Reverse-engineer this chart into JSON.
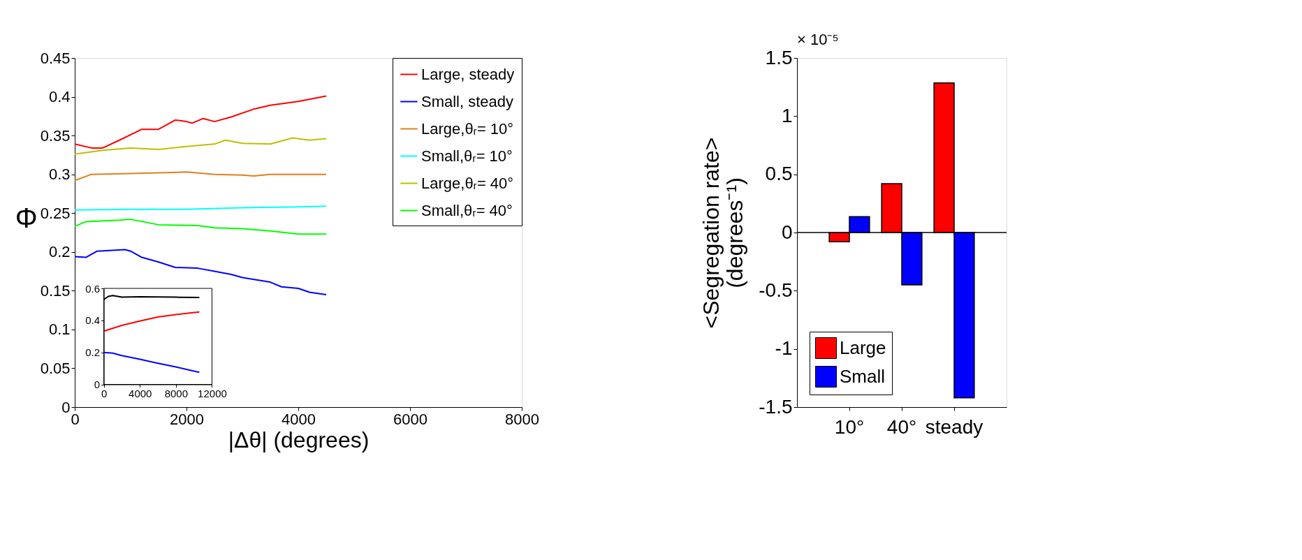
{
  "chart_data": [
    {
      "type": "line",
      "xlabel": "|Δθ| (degrees)",
      "ylabel": "Φ",
      "xlim": [
        0,
        8000
      ],
      "ylim": [
        0,
        0.45
      ],
      "xticks": [
        0,
        2000,
        4000,
        6000,
        8000
      ],
      "yticks": [
        0,
        0.05,
        0.1,
        0.15,
        0.2,
        0.25,
        0.3,
        0.35,
        0.4,
        0.45
      ],
      "grid": false,
      "legend": "top right",
      "line_style": "solid",
      "series": [
        {
          "name": "Large, steady",
          "color": "#ff0000",
          "x": [
            0,
            300,
            500,
            800,
            1200,
            1500,
            1800,
            2000,
            2100,
            2300,
            2500,
            2800,
            3200,
            3500,
            4000,
            4500
          ],
          "values": [
            0.339,
            0.334,
            0.334,
            0.344,
            0.358,
            0.358,
            0.37,
            0.368,
            0.366,
            0.372,
            0.368,
            0.374,
            0.384,
            0.389,
            0.394,
            0.401
          ]
        },
        {
          "name": "Small, steady",
          "color": "#0000ff",
          "x": [
            0,
            200,
            400,
            900,
            1000,
            1200,
            1500,
            1800,
            2200,
            2500,
            2800,
            3000,
            3500,
            3700,
            4000,
            4200,
            4500
          ],
          "values": [
            0.194,
            0.193,
            0.201,
            0.203,
            0.201,
            0.193,
            0.187,
            0.18,
            0.179,
            0.175,
            0.171,
            0.167,
            0.161,
            0.155,
            0.153,
            0.148,
            0.145
          ]
        },
        {
          "name": "Large,θᵣ= 10°",
          "color": "#e0801a",
          "x": [
            0,
            300,
            1000,
            1500,
            2000,
            2500,
            3000,
            3200,
            3500,
            4000,
            4500
          ],
          "values": [
            0.292,
            0.3,
            0.301,
            0.302,
            0.303,
            0.3,
            0.299,
            0.298,
            0.3,
            0.3,
            0.3
          ]
        },
        {
          "name": "Small,θᵣ= 10°",
          "color": "#00ffff",
          "x": [
            0,
            1000,
            2000,
            3000,
            4000,
            4500
          ],
          "values": [
            0.254,
            0.255,
            0.255,
            0.257,
            0.258,
            0.259
          ]
        },
        {
          "name": "Large,θᵣ= 40°",
          "color": "#bfbf00",
          "x": [
            0,
            500,
            1000,
            1500,
            2000,
            2500,
            2700,
            3000,
            3500,
            3900,
            4200,
            4500
          ],
          "values": [
            0.326,
            0.331,
            0.334,
            0.332,
            0.336,
            0.339,
            0.344,
            0.34,
            0.339,
            0.347,
            0.344,
            0.346
          ]
        },
        {
          "name": "Small,θᵣ= 40°",
          "color": "#00ff00",
          "x": [
            0,
            200,
            800,
            1000,
            1500,
            2200,
            2500,
            3000,
            3500,
            4000,
            4500
          ],
          "values": [
            0.233,
            0.239,
            0.241,
            0.242,
            0.235,
            0.234,
            0.231,
            0.23,
            0.227,
            0.223,
            0.223
          ]
        }
      ]
    },
    {
      "type": "line",
      "xlim": [
        0,
        12000
      ],
      "ylim": [
        0,
        0.6
      ],
      "xticks": [
        0,
        4000,
        8000,
        12000
      ],
      "yticks": [
        0,
        0.2,
        0.4,
        0.6
      ],
      "grid": false,
      "series": [
        {
          "color": "#000000",
          "x": [
            0,
            500,
            1000,
            2000,
            4000,
            6000,
            8000,
            10600
          ],
          "values": [
            0.53,
            0.55,
            0.555,
            0.545,
            0.548,
            0.547,
            0.545,
            0.543
          ]
        },
        {
          "color": "#ff0000",
          "x": [
            0,
            2000,
            4000,
            6000,
            8000,
            10600
          ],
          "values": [
            0.333,
            0.369,
            0.396,
            0.421,
            0.436,
            0.453
          ]
        },
        {
          "color": "#0000ff",
          "x": [
            0,
            1000,
            2000,
            4000,
            6000,
            8000,
            10600
          ],
          "values": [
            0.2,
            0.195,
            0.18,
            0.157,
            0.132,
            0.109,
            0.075
          ]
        }
      ]
    },
    {
      "type": "bar",
      "ylabel": "<Segregation rate>\n(degrees⁻¹)",
      "categories": [
        "10°",
        "40°",
        "steady"
      ],
      "ylim": [
        -1.5,
        1.5
      ],
      "yticks": [
        -1.5,
        -1,
        -0.5,
        0,
        0.5,
        1,
        1.5
      ],
      "grid": false,
      "legend": "bottom left",
      "annotations": [
        "× 10⁻⁵"
      ],
      "ref_lines": [
        {
          "axis": "y",
          "value": 0,
          "color": "#000000"
        }
      ],
      "series": [
        {
          "name": "Large",
          "color": "#ff0000",
          "values": [
            -0.08,
            0.42,
            1.285
          ]
        },
        {
          "name": "Small",
          "color": "#0000ff",
          "values": [
            0.137,
            -0.45,
            -1.42
          ]
        }
      ]
    }
  ]
}
